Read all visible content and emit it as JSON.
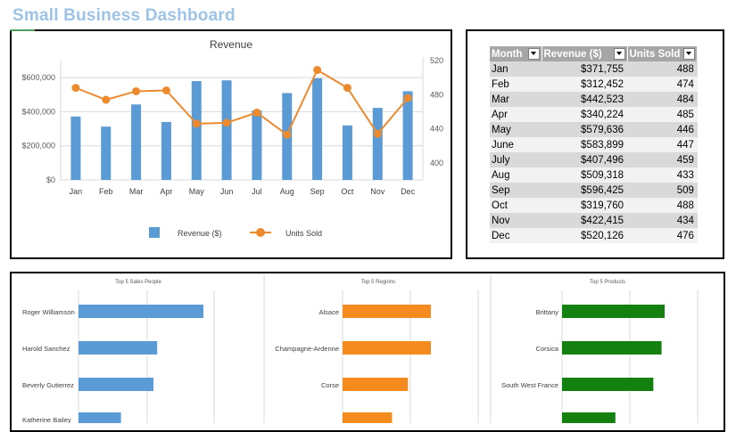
{
  "dashboard": {
    "title": "Small Business Dashboard"
  },
  "colors": {
    "revenue": "#5b9bd5",
    "units": "#ed8a2e",
    "regions": "#f58b1f",
    "products": "#13800f",
    "title": "#9dc3e6"
  },
  "chart_data": [
    {
      "type": "bar+line",
      "title": "Revenue",
      "categories": [
        "Jan",
        "Feb",
        "Mar",
        "Apr",
        "May",
        "Jun",
        "Jul",
        "Aug",
        "Sep",
        "Oct",
        "Nov",
        "Dec"
      ],
      "series": [
        {
          "name": "Revenue ($)",
          "axis": "left",
          "kind": "bar",
          "values": [
            371755,
            312452,
            442523,
            340224,
            579636,
            583899,
            407496,
            509318,
            596425,
            319760,
            422415,
            520126
          ]
        },
        {
          "name": "Units Sold",
          "axis": "right",
          "kind": "line",
          "values": [
            488,
            474,
            484,
            485,
            446,
            447,
            459,
            433,
            509,
            488,
            434,
            476
          ]
        }
      ],
      "y_left": {
        "min": 0,
        "max": 700000,
        "ticks": [
          0,
          200000,
          400000,
          600000
        ],
        "tick_labels": [
          "$0",
          "$200,000",
          "$400,000",
          "$600,000"
        ]
      },
      "y_right": {
        "min": 380,
        "max": 520,
        "ticks": [
          400,
          440,
          480,
          520
        ],
        "tick_labels": [
          "400",
          "440",
          "480",
          "520"
        ]
      },
      "legend": [
        "Revenue ($)",
        "Units Sold"
      ],
      "legend_position": "bottom"
    },
    {
      "type": "bar",
      "orientation": "horizontal",
      "title": "Top 5 Sales People",
      "categories": [
        "Roger Williamson",
        "Harold Sanchez",
        "Beverly Gutierrez",
        "Katherine Bailey"
      ],
      "values": [
        100,
        63,
        60,
        34
      ],
      "xlim": [
        0,
        150
      ]
    },
    {
      "type": "bar",
      "orientation": "horizontal",
      "title": "Top 5 Regions",
      "categories": [
        "Alsace",
        "Champagne-Ardenne",
        "Corse",
        ""
      ],
      "values": [
        100,
        100,
        74,
        56
      ],
      "xlim": [
        0,
        150
      ]
    },
    {
      "type": "bar",
      "orientation": "horizontal",
      "title": "Top 5 Products",
      "categories": [
        "Brittany",
        "Corsica",
        "South West France",
        ""
      ],
      "values": [
        100,
        97,
        89,
        52
      ],
      "xlim": [
        0,
        150
      ]
    }
  ],
  "table": {
    "headers": [
      "Month",
      "Revenue ($)",
      "Units Sold"
    ],
    "rows": [
      [
        "Jan",
        "$371,755",
        "488"
      ],
      [
        "Feb",
        "$312,452",
        "474"
      ],
      [
        "Mar",
        "$442,523",
        "484"
      ],
      [
        "Apr",
        "$340,224",
        "485"
      ],
      [
        "May",
        "$579,636",
        "446"
      ],
      [
        "June",
        "$583,899",
        "447"
      ],
      [
        "July",
        "$407,496",
        "459"
      ],
      [
        "Aug",
        "$509,318",
        "433"
      ],
      [
        "Sep",
        "$596,425",
        "509"
      ],
      [
        "Oct",
        "$319,760",
        "488"
      ],
      [
        "Nov",
        "$422,415",
        "434"
      ],
      [
        "Dec",
        "$520,126",
        "476"
      ]
    ]
  }
}
